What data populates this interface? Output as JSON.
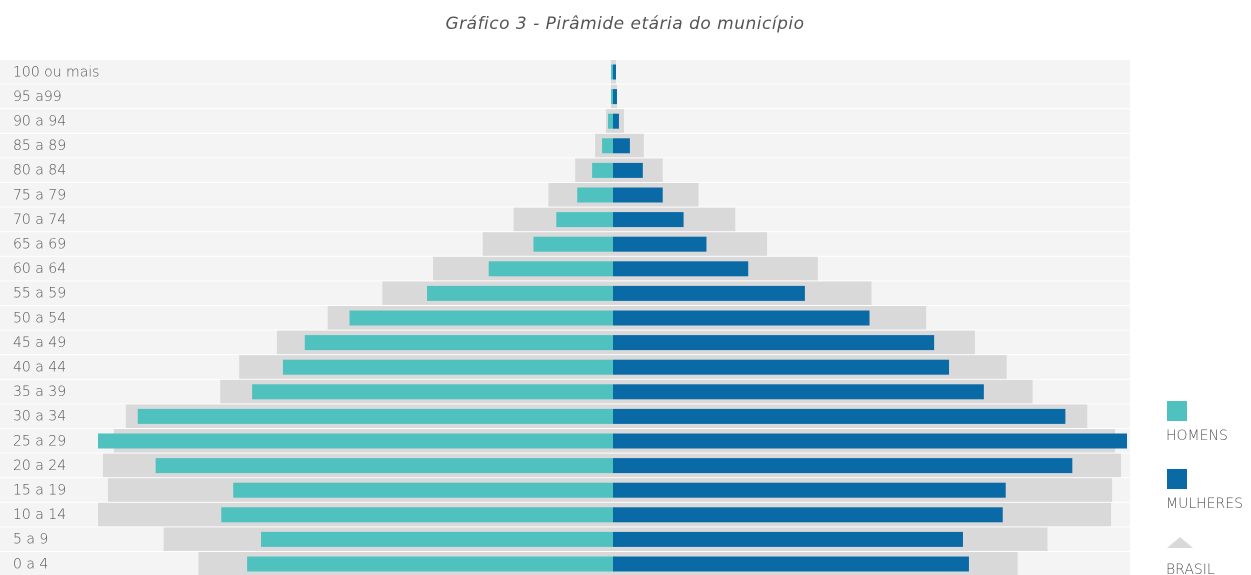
{
  "chart_data": {
    "type": "pyramid",
    "title": "Gráfico 3 - Pirâmide etária do município",
    "categories": [
      "100 ou mais",
      "95 a99",
      "90 a 94",
      "85 a 89",
      "80 a 84",
      "75 a 79",
      "70 a 74",
      "65 a 69",
      "60 a 64",
      "55 a 59",
      "50 a 54",
      "45 a 49",
      "40 a 44",
      "35 a 39",
      "30 a 34",
      "25 a 29",
      "20 a 24",
      "15 a 19",
      "10 a 14",
      "5 a 9",
      "0 a 4"
    ],
    "xlim": [
      0,
      520
    ],
    "series": [
      {
        "name": "HOMENS",
        "color": "#4fc1bf",
        "side": "left",
        "values": [
          2,
          2,
          5,
          11,
          21,
          36,
          57,
          80,
          125,
          187,
          265,
          310,
          332,
          363,
          478,
          518,
          460,
          382,
          394,
          354,
          368
        ]
      },
      {
        "name": "MULHERES",
        "color": "#0a6aa6",
        "side": "right",
        "values": [
          3,
          4,
          6,
          17,
          30,
          50,
          71,
          94,
          136,
          193,
          258,
          323,
          338,
          373,
          455,
          517,
          462,
          395,
          392,
          352,
          358
        ]
      },
      {
        "name": "BRASIL",
        "color": "#d9d9d9",
        "side": "both",
        "values_left": [
          2,
          2,
          7,
          18,
          38,
          65,
          100,
          131,
          181,
          232,
          287,
          338,
          376,
          395,
          490,
          502,
          513,
          508,
          518,
          452,
          417
        ],
        "values_right": [
          3,
          4,
          11,
          31,
          50,
          86,
          123,
          155,
          206,
          260,
          315,
          364,
          396,
          422,
          477,
          505,
          511,
          502,
          501,
          437,
          407
        ]
      }
    ]
  }
}
